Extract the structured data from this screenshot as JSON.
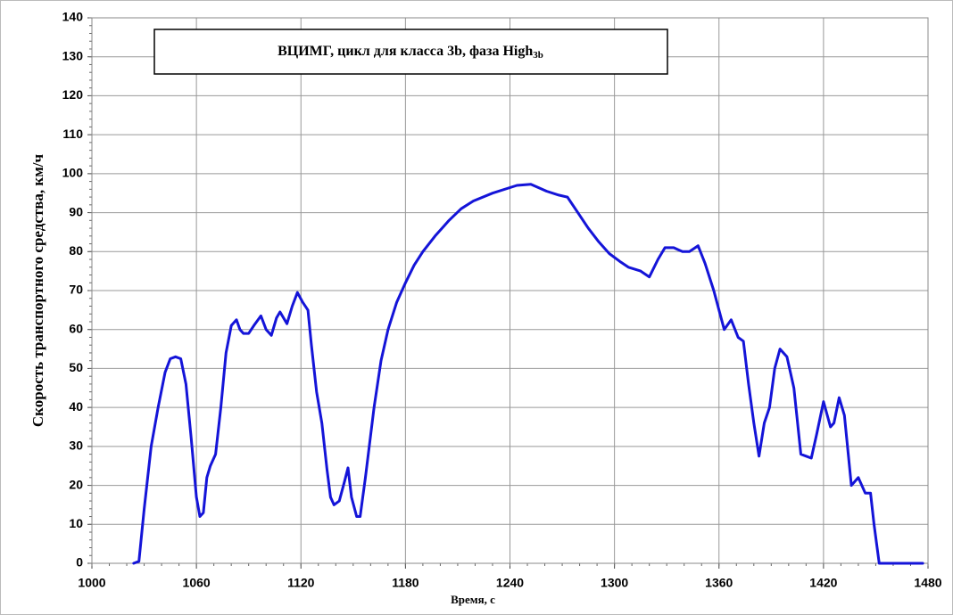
{
  "chart_data": {
    "type": "line",
    "title": "ВЦИМГ, цикл для класса 3b, фаза High",
    "title_subscript": "3b",
    "x_label": "Время, с",
    "y_label": "Скорость транспортного средства, км/ч",
    "color": "#1414d8",
    "grid": true,
    "xlim": [
      1000,
      1480
    ],
    "xticks": [
      1000,
      1060,
      1120,
      1180,
      1240,
      1300,
      1360,
      1420,
      1480
    ],
    "ylim": [
      0,
      140
    ],
    "yticks": [
      0,
      10,
      20,
      30,
      40,
      50,
      60,
      70,
      80,
      90,
      100,
      110,
      120,
      130,
      140
    ],
    "x": [
      1024,
      1027,
      1030,
      1034,
      1038,
      1042,
      1045,
      1048,
      1051,
      1054,
      1057,
      1060,
      1062,
      1064,
      1066,
      1068,
      1071,
      1074,
      1077,
      1080,
      1083,
      1085,
      1087,
      1090,
      1093,
      1097,
      1100,
      1103,
      1106,
      1108,
      1112,
      1115,
      1118,
      1121,
      1124,
      1126,
      1129,
      1132,
      1135,
      1137,
      1139,
      1142,
      1145,
      1147,
      1149,
      1152,
      1154,
      1157,
      1162,
      1166,
      1170,
      1175,
      1180,
      1185,
      1190,
      1197,
      1205,
      1212,
      1219,
      1230,
      1244,
      1252,
      1261,
      1268,
      1273,
      1279,
      1285,
      1291,
      1297,
      1303,
      1308,
      1315,
      1320,
      1325,
      1329,
      1334,
      1339,
      1343,
      1348,
      1352,
      1357,
      1363,
      1367,
      1371,
      1374,
      1377,
      1380,
      1383,
      1386,
      1389,
      1392,
      1395,
      1399,
      1403,
      1407,
      1410,
      1413,
      1416,
      1420,
      1424,
      1426,
      1429,
      1432,
      1436,
      1440,
      1444,
      1447,
      1449,
      1452,
      1477
    ],
    "values": [
      0,
      0.5,
      14,
      30,
      40,
      49,
      52.5,
      53,
      52.5,
      46,
      32,
      17,
      12,
      13,
      22,
      25,
      28,
      40,
      54,
      61,
      62.5,
      60,
      59,
      59,
      61,
      63.5,
      60,
      58.5,
      63,
      64.5,
      61.5,
      66,
      69.5,
      67,
      65,
      56,
      44,
      36,
      24,
      17,
      15,
      16,
      21,
      24.5,
      17,
      12,
      12,
      22,
      40,
      52,
      60,
      67,
      72,
      76.5,
      80,
      84,
      88,
      91,
      93,
      95,
      97,
      97.3,
      95.5,
      94.5,
      94,
      90,
      86,
      82.5,
      79.5,
      77.5,
      76,
      75,
      73.5,
      78,
      81,
      81,
      80,
      80,
      81.5,
      77,
      70,
      60,
      62.5,
      58,
      57,
      46,
      36,
      27.5,
      36,
      40,
      50,
      55,
      53,
      45,
      28,
      27.5,
      27,
      33,
      41.5,
      35,
      36,
      42.5,
      38,
      20,
      22,
      18,
      18,
      10,
      0,
      0
    ]
  }
}
